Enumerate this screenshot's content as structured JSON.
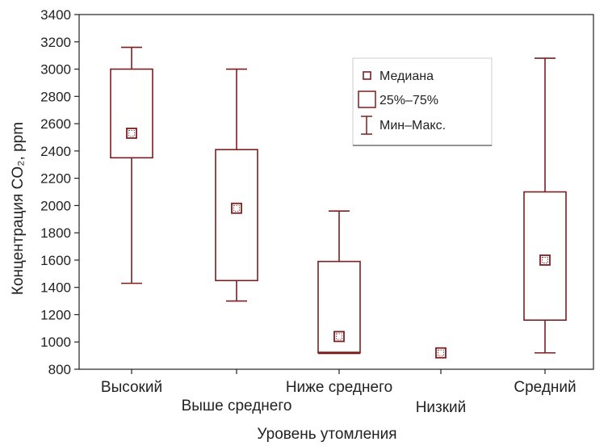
{
  "colors": {
    "box": "#7a1f1f",
    "axis": "#222222",
    "legend_border": "#cccccc"
  },
  "chart_data": {
    "type": "box",
    "xlabel": "Уровень утомления",
    "ylabel": "Концентрация CO₂, ppm",
    "ylim": [
      800,
      3400
    ],
    "yticks": [
      800,
      1000,
      1200,
      1400,
      1600,
      1800,
      2000,
      2200,
      2400,
      2600,
      2800,
      3000,
      3200,
      3400
    ],
    "grid": false,
    "legend_position": "top-right",
    "categories": [
      "Высокий",
      "Выше среднего",
      "Ниже среднего",
      "Низкий",
      "Средний"
    ],
    "series": [
      {
        "category": "Высокий",
        "min": 1430,
        "q1": 2350,
        "median": 2530,
        "q3": 3000,
        "max": 3160
      },
      {
        "category": "Выше среднего",
        "min": 1300,
        "q1": 1450,
        "median": 1980,
        "q3": 2410,
        "max": 3000
      },
      {
        "category": "Ниже среднего",
        "min": 920,
        "q1": 920,
        "median": 1040,
        "q3": 1590,
        "max": 1960
      },
      {
        "category": "Низкий",
        "min": 920,
        "q1": 920,
        "median": 920,
        "q3": 920,
        "max": 920
      },
      {
        "category": "Средний",
        "min": 920,
        "q1": 1160,
        "median": 1600,
        "q3": 2100,
        "max": 3080
      }
    ],
    "legend": [
      "Медиана",
      "25%–75%",
      "Мин–Макс."
    ]
  }
}
